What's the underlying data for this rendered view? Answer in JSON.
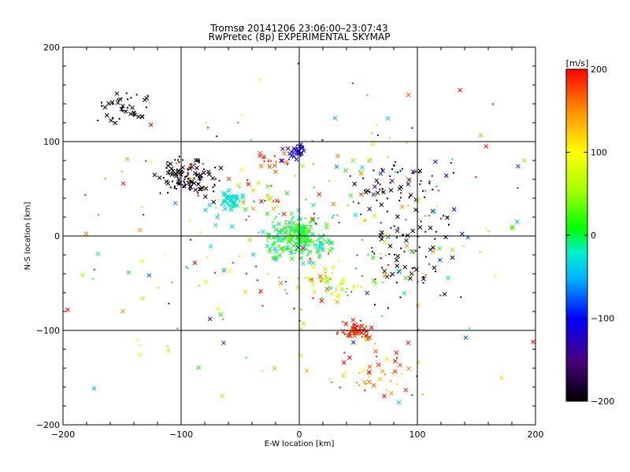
{
  "chart_data": {
    "type": "scatter",
    "title": "Tromsø 20141206 23:06:00–23:07:43",
    "subtitle": "RwPretec (8p) EXPERIMENTAL SKYMAP",
    "xlabel": "E-W location [km]",
    "ylabel": "N-S location [km]",
    "xlim": [
      -200,
      200
    ],
    "ylim": [
      -200,
      200
    ],
    "xticks": [
      "−200",
      "−100",
      "0",
      "100",
      "200"
    ],
    "yticks": [
      "−200",
      "−100",
      "0",
      "100",
      "200"
    ],
    "grid": true,
    "colorbar": {
      "label": "[m/s]",
      "range": [
        -200,
        200
      ],
      "ticks": [
        "200",
        "100",
        "0",
        "−100",
        "−200"
      ]
    },
    "clusters": [
      {
        "cx": -148,
        "cy": 135,
        "sx": 12,
        "sy": 11,
        "n": 45,
        "v": -195,
        "dv": 15
      },
      {
        "cx": -95,
        "cy": 62,
        "sx": 12,
        "sy": 10,
        "n": 120,
        "v": -195,
        "dv": 15
      },
      {
        "cx": -58,
        "cy": 38,
        "sx": 5,
        "sy": 5,
        "n": 70,
        "v": -25,
        "dv": 12
      },
      {
        "cx": -1,
        "cy": 0,
        "sx": 13,
        "sy": 11,
        "n": 260,
        "v": 0,
        "dv": 35
      },
      {
        "cx": -2,
        "cy": 90,
        "sx": 4,
        "sy": 4,
        "n": 30,
        "v": -110,
        "dv": 25
      },
      {
        "cx": 48,
        "cy": -100,
        "sx": 6,
        "sy": 5,
        "n": 60,
        "v": 190,
        "dv": 20
      },
      {
        "cx": 93,
        "cy": -15,
        "sx": 18,
        "sy": 25,
        "n": 70,
        "v": -195,
        "dv": 10
      },
      {
        "cx": 85,
        "cy": 55,
        "sx": 18,
        "sy": 12,
        "n": 60,
        "v": -180,
        "dv": 40
      },
      {
        "cx": -25,
        "cy": 78,
        "sx": 8,
        "sy": 5,
        "n": 22,
        "v": 180,
        "dv": 25
      },
      {
        "cx": 25,
        "cy": -50,
        "sx": 12,
        "sy": 10,
        "n": 45,
        "v": 100,
        "dv": 80
      },
      {
        "cx": 70,
        "cy": -150,
        "sx": 20,
        "sy": 12,
        "n": 45,
        "v": 160,
        "dv": 60
      },
      {
        "cx": 10,
        "cy": 0,
        "sx": 90,
        "sy": 70,
        "n": 320,
        "v": 60,
        "dv": 180
      }
    ]
  }
}
